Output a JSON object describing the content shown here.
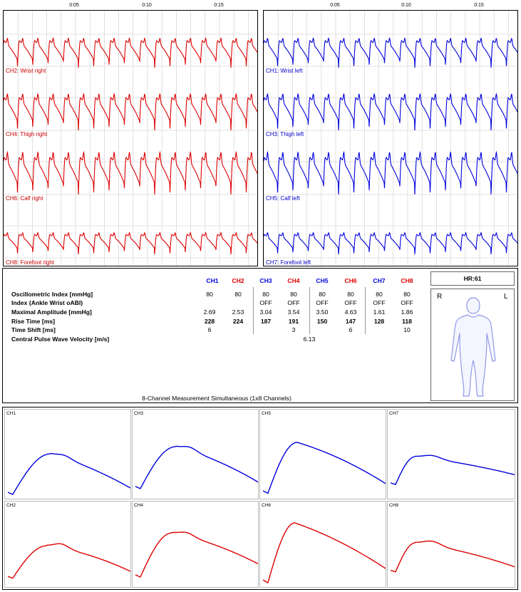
{
  "time_axis": {
    "left": [
      "0:05",
      "0:10",
      "0:15"
    ],
    "right": [
      "0:05",
      "0:10",
      "0:15"
    ]
  },
  "left_panel": {
    "color": "#dd0000",
    "channels": [
      {
        "label": "CH2: Wrist right"
      },
      {
        "label": "CH4: Thigh right"
      },
      {
        "label": "CH6: Calf right"
      },
      {
        "label": "CH8: Forefoot right"
      }
    ]
  },
  "right_panel": {
    "color": "#0000dd",
    "channels": [
      {
        "label": "CH1: Wrist left"
      },
      {
        "label": "CH3: Thigh left"
      },
      {
        "label": "CH5: Calf left"
      },
      {
        "label": "CH7: Forefoot left"
      }
    ]
  },
  "table": {
    "headers": [
      "CH1",
      "CH2",
      "CH3",
      "CH4",
      "CH5",
      "CH6",
      "CH7",
      "CH8"
    ],
    "header_colors": [
      "#0000dd",
      "#dd0000",
      "#0000dd",
      "#dd0000",
      "#0000dd",
      "#dd0000",
      "#0000dd",
      "#dd0000"
    ],
    "rows": [
      {
        "label": "Oscillometric Index [mmHg]",
        "values": [
          "80",
          "80",
          "80",
          "80",
          "80",
          "80",
          "80",
          "80"
        ],
        "bold": false
      },
      {
        "label": "Index (Ankle Wrist oABI)",
        "values": [
          "",
          "",
          "OFF",
          "OFF",
          "OFF",
          "OFF",
          "OFF",
          "OFF"
        ],
        "bold": false
      },
      {
        "label": "Maximal Amplitude [mmHg]",
        "values": [
          "2.69",
          "2.53",
          "3.04",
          "3.54",
          "3.50",
          "4.63",
          "1.61",
          "1.86"
        ],
        "bold": false
      },
      {
        "label": "Rise Time [ms]",
        "values": [
          "228",
          "224",
          "187",
          "191",
          "150",
          "147",
          "128",
          "118"
        ],
        "bold": true
      },
      {
        "label": "Time Shift [ms]",
        "values": [
          "6",
          "",
          "",
          "3",
          "",
          "6",
          "",
          "10"
        ],
        "bold": false
      },
      {
        "label": "Central Pulse Wave Velocity [m/s]",
        "values": [
          "",
          "",
          "",
          "",
          "6.13",
          "",
          "",
          ""
        ],
        "bold": false
      }
    ],
    "caption": "8-Channel Measurement Simultaneous (1x8 Channels)"
  },
  "side": {
    "hr": "HR:61",
    "right_side": "R",
    "left_side": "L"
  },
  "mini_plots": {
    "top": [
      {
        "label": "CH1",
        "color": "#0000dd"
      },
      {
        "label": "CH3",
        "color": "#0000dd"
      },
      {
        "label": "CH5",
        "color": "#0000dd"
      },
      {
        "label": "CH7",
        "color": "#0000dd"
      }
    ],
    "bottom": [
      {
        "label": "CH2",
        "color": "#dd0000"
      },
      {
        "label": "CH4",
        "color": "#dd0000"
      },
      {
        "label": "CH6",
        "color": "#dd0000"
      },
      {
        "label": "CH8",
        "color": "#dd0000"
      }
    ]
  }
}
